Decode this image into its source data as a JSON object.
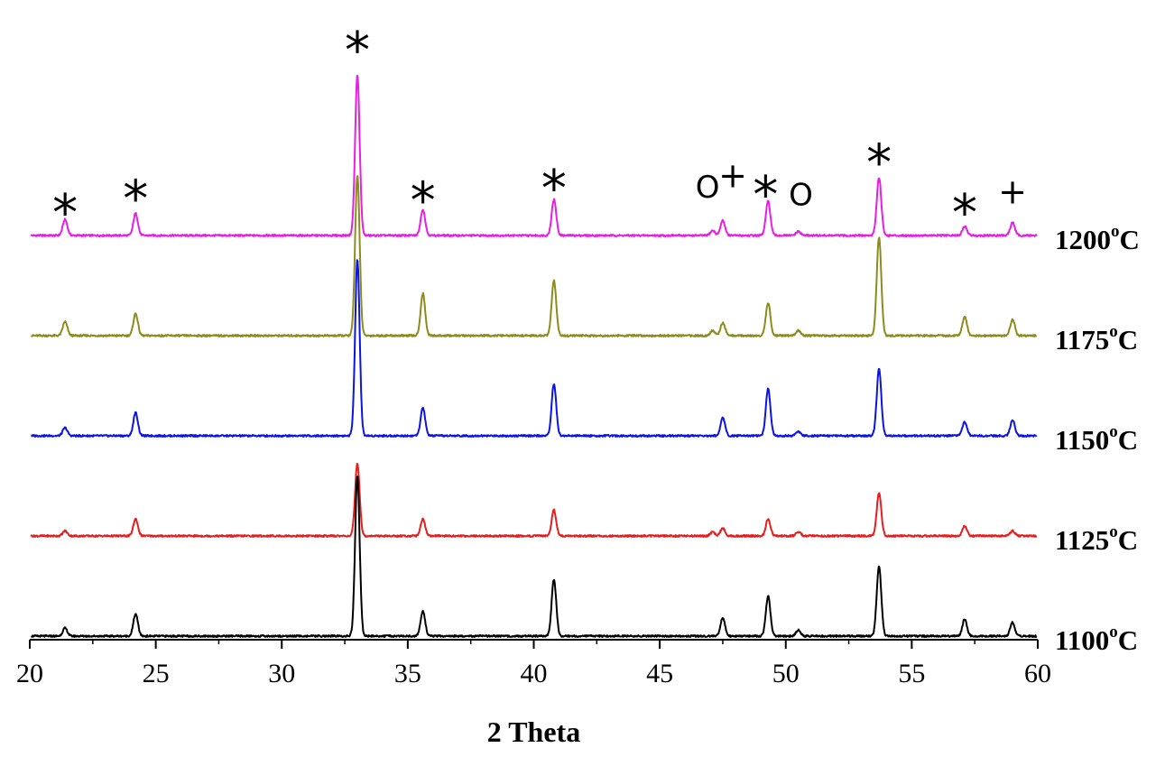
{
  "chart_data": {
    "type": "line",
    "xlabel": "2 Theta",
    "xlim": [
      20,
      60
    ],
    "x_ticks": [
      "20",
      "25",
      "30",
      "35",
      "40",
      "45",
      "50",
      "55",
      "60"
    ],
    "ylabel": "",
    "grid": false,
    "series_label_suffix": "C",
    "series_label_sup": "o",
    "series": [
      {
        "name": "1200",
        "color": "#e61ee6",
        "baseline": 4,
        "peaks": [
          [
            21.4,
            0.16
          ],
          [
            24.2,
            0.22
          ],
          [
            33.0,
            1.6
          ],
          [
            35.6,
            0.26
          ],
          [
            40.8,
            0.36
          ],
          [
            47.1,
            0.05
          ],
          [
            47.5,
            0.15
          ],
          [
            49.3,
            0.34
          ],
          [
            50.5,
            0.04
          ],
          [
            53.7,
            0.58
          ],
          [
            57.1,
            0.09
          ],
          [
            59.0,
            0.13
          ]
        ]
      },
      {
        "name": "1175",
        "color": "#8c8c1e",
        "baseline": 3,
        "peaks": [
          [
            21.4,
            0.14
          ],
          [
            24.2,
            0.22
          ],
          [
            33.0,
            1.6
          ],
          [
            35.6,
            0.42
          ],
          [
            40.8,
            0.55
          ],
          [
            47.1,
            0.05
          ],
          [
            47.5,
            0.13
          ],
          [
            49.3,
            0.33
          ],
          [
            50.5,
            0.05
          ],
          [
            53.7,
            0.98
          ],
          [
            57.1,
            0.19
          ],
          [
            59.0,
            0.16
          ]
        ]
      },
      {
        "name": "1150",
        "color": "#0a14e6",
        "baseline": 2,
        "peaks": [
          [
            21.4,
            0.08
          ],
          [
            24.2,
            0.23
          ],
          [
            33.0,
            1.76
          ],
          [
            35.6,
            0.28
          ],
          [
            40.8,
            0.52
          ],
          [
            47.5,
            0.18
          ],
          [
            49.3,
            0.47
          ],
          [
            50.5,
            0.04
          ],
          [
            53.7,
            0.67
          ],
          [
            57.1,
            0.14
          ],
          [
            59.0,
            0.16
          ]
        ]
      },
      {
        "name": "1125",
        "color": "#e61e1e",
        "baseline": 1,
        "peaks": [
          [
            21.4,
            0.05
          ],
          [
            24.2,
            0.17
          ],
          [
            33.0,
            0.72
          ],
          [
            35.6,
            0.17
          ],
          [
            40.8,
            0.26
          ],
          [
            47.1,
            0.04
          ],
          [
            47.5,
            0.08
          ],
          [
            49.3,
            0.17
          ],
          [
            50.5,
            0.04
          ],
          [
            53.7,
            0.43
          ],
          [
            57.1,
            0.1
          ],
          [
            59.0,
            0.05
          ]
        ]
      },
      {
        "name": "1100",
        "color": "#000000",
        "baseline": 0,
        "peaks": [
          [
            21.4,
            0.08
          ],
          [
            24.2,
            0.22
          ],
          [
            33.0,
            1.6
          ],
          [
            35.6,
            0.25
          ],
          [
            40.8,
            0.57
          ],
          [
            47.5,
            0.18
          ],
          [
            49.3,
            0.4
          ],
          [
            50.5,
            0.06
          ],
          [
            53.7,
            0.7
          ],
          [
            57.1,
            0.17
          ],
          [
            59.0,
            0.14
          ]
        ]
      }
    ],
    "annotations": [
      {
        "text": "*",
        "kind": "star",
        "x": 21.4,
        "level": 4.38
      },
      {
        "text": "*",
        "kind": "star",
        "x": 24.2,
        "level": 4.52
      },
      {
        "text": "*",
        "kind": "star",
        "x": 33.0,
        "level": 6.0
      },
      {
        "text": "*",
        "kind": "star",
        "x": 35.6,
        "level": 4.5
      },
      {
        "text": "*",
        "kind": "star",
        "x": 40.8,
        "level": 4.62
      },
      {
        "text": "O",
        "kind": "o",
        "x": 46.9,
        "level": 4.38
      },
      {
        "text": "+",
        "kind": "plus",
        "x": 47.9,
        "level": 4.48
      },
      {
        "text": "*",
        "kind": "star",
        "x": 49.2,
        "level": 4.56
      },
      {
        "text": "O",
        "kind": "o",
        "x": 50.6,
        "level": 4.3
      },
      {
        "text": "*",
        "kind": "star",
        "x": 53.7,
        "level": 4.88
      },
      {
        "text": "*",
        "kind": "star",
        "x": 57.1,
        "level": 4.38
      },
      {
        "text": "+",
        "kind": "plus",
        "x": 59.0,
        "level": 4.32
      }
    ]
  }
}
